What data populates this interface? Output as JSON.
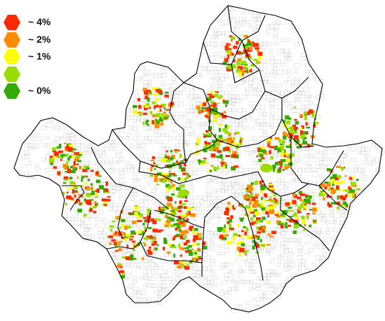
{
  "legend": {
    "items": [
      {
        "label": "~ 4%",
        "color": "#ff2a00"
      },
      {
        "label": "~ 2%",
        "color": "#ff8c00"
      },
      {
        "label": "~ 1%",
        "color": "#ffff00"
      },
      {
        "label": "",
        "color": "#99dd00"
      },
      {
        "label": "~ 0%",
        "color": "#33aa00"
      }
    ]
  },
  "map": {
    "region_count": 25,
    "fill_colors": [
      "#ff2a00",
      "#ff8c00",
      "#ffff00",
      "#99dd00",
      "#33aa00"
    ],
    "boundary_color": "#000000",
    "parcel_outline_color": "#bbbbbb"
  }
}
